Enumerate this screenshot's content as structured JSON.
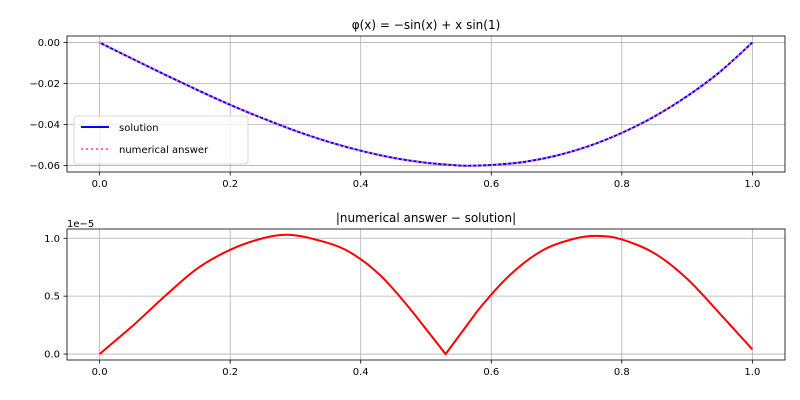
{
  "chart_data": [
    {
      "type": "line",
      "title": "φ(x) = −sin(x) + x sin(1)",
      "xlim": [
        -0.05,
        1.05
      ],
      "ylim": [
        -0.0632,
        0.0032
      ],
      "xticks": [
        0.0,
        0.2,
        0.4,
        0.6,
        0.8,
        1.0
      ],
      "xtick_labels": [
        "0.0",
        "0.2",
        "0.4",
        "0.6",
        "0.8",
        "1.0"
      ],
      "yticks": [
        0.0,
        -0.02,
        -0.04,
        -0.06
      ],
      "ytick_labels": [
        "0.00",
        "−0.02",
        "−0.04",
        "−0.06"
      ],
      "grid": true,
      "legend_position": "lower-left",
      "x": [
        0.0,
        0.05,
        0.1,
        0.15,
        0.2,
        0.25,
        0.3,
        0.35,
        0.4,
        0.45,
        0.5,
        0.55,
        0.5708,
        0.6,
        0.65,
        0.7,
        0.75,
        0.8,
        0.85,
        0.9,
        0.95,
        1.0
      ],
      "series": [
        {
          "name": "solution",
          "color": "#0000ff",
          "style": "solid",
          "values": [
            0.0,
            -0.0079,
            -0.0157,
            -0.0232,
            -0.0304,
            -0.037,
            -0.0431,
            -0.0484,
            -0.0528,
            -0.0563,
            -0.0587,
            -0.06,
            -0.0601,
            -0.0598,
            -0.0583,
            -0.0552,
            -0.0505,
            -0.0441,
            -0.0361,
            -0.0262,
            -0.0144,
            0.0
          ]
        },
        {
          "name": "numerical answer",
          "color": "#ff69b4",
          "style": "dotted",
          "values": [
            0.0,
            -0.0079,
            -0.0157,
            -0.0232,
            -0.0304,
            -0.037,
            -0.0431,
            -0.0484,
            -0.0528,
            -0.0563,
            -0.0587,
            -0.06,
            -0.0601,
            -0.0598,
            -0.0583,
            -0.0552,
            -0.0505,
            -0.0441,
            -0.0361,
            -0.0262,
            -0.0144,
            0.0
          ]
        }
      ]
    },
    {
      "type": "line",
      "title": "|numerical answer − solution|",
      "scale_label": "1e−5",
      "xlim": [
        -0.05,
        1.05
      ],
      "ylim": [
        -5.15e-07,
        1.08e-05
      ],
      "xticks": [
        0.0,
        0.2,
        0.4,
        0.6,
        0.8,
        1.0
      ],
      "xtick_labels": [
        "0.0",
        "0.2",
        "0.4",
        "0.6",
        "0.8",
        "1.0"
      ],
      "yticks": [
        0.0,
        5e-06,
        1e-05
      ],
      "ytick_labels": [
        "0.0",
        "0.5",
        "1.0"
      ],
      "grid": true,
      "x": [
        0.0,
        0.05,
        0.1,
        0.15,
        0.2,
        0.25,
        0.2875,
        0.33,
        0.38,
        0.43,
        0.48,
        0.53,
        0.58,
        0.63,
        0.68,
        0.73,
        0.765,
        0.8,
        0.85,
        0.9,
        0.95,
        1.0
      ],
      "series": [
        {
          "name": "",
          "color": "#ff0000",
          "style": "solid",
          "values": [
            0.0,
            2.4e-06,
            5e-06,
            7.4e-06,
            9e-06,
            1e-05,
            1.03e-05,
            9.9e-06,
            8.9e-06,
            6.8e-06,
            3.6e-06,
            0.0,
            3.8e-06,
            6.9e-06,
            9e-06,
            1e-05,
            1.02e-05,
            9.9e-06,
            8.7e-06,
            6.5e-06,
            3.5e-06,
            4e-07
          ]
        }
      ]
    }
  ]
}
